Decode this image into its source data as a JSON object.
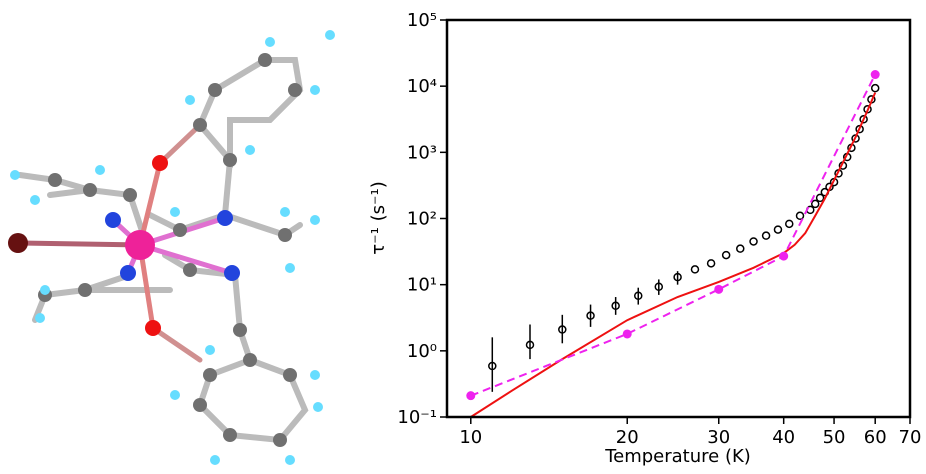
{
  "chart_data": {
    "type": "scatter-line",
    "xlabel": "Temperature (K)",
    "ylabel": "τ⁻¹ (s⁻¹)",
    "xscale": "log",
    "yscale": "log",
    "xlim": [
      9,
      70
    ],
    "ylim": [
      0.1,
      100000
    ],
    "xticks": [
      10,
      20,
      30,
      40,
      50,
      60,
      70
    ],
    "yticks": [
      {
        "value": 0.1,
        "label": "10⁻¹"
      },
      {
        "value": 1,
        "label": "10⁰"
      },
      {
        "value": 10,
        "label": "10¹"
      },
      {
        "value": 100,
        "label": "10²"
      },
      {
        "value": 1000,
        "label": "10³"
      },
      {
        "value": 10000,
        "label": "10⁴"
      },
      {
        "value": 100000,
        "label": "10⁵"
      }
    ],
    "series": [
      {
        "style": "open-circle-errorbar",
        "color": "#000000",
        "x": [
          11,
          13,
          15,
          17,
          19,
          21,
          23,
          25,
          27,
          29,
          31,
          33,
          35,
          37,
          39,
          41,
          43,
          45,
          46,
          47,
          48,
          49,
          50,
          51,
          52,
          53,
          54,
          55,
          56,
          57,
          58,
          59,
          60
        ],
        "values": [
          0.59,
          1.23,
          2.1,
          3.4,
          4.8,
          6.8,
          9.3,
          13,
          17,
          21,
          28,
          35,
          45,
          55,
          68,
          83,
          110,
          135,
          166,
          205,
          250,
          300,
          355,
          480,
          630,
          850,
          1170,
          1620,
          2240,
          3160,
          4470,
          6310,
          9330
        ],
        "lower": [
          0.24,
          0.75,
          1.3,
          2.3,
          3.5,
          5.0,
          7,
          10,
          null,
          null,
          null,
          null,
          null,
          null,
          null,
          null,
          null,
          null,
          null,
          null,
          null,
          null,
          null,
          null,
          null,
          null,
          null,
          null,
          null,
          null,
          null,
          null,
          null
        ],
        "upper": [
          1.6,
          2.5,
          3.5,
          5.0,
          6.5,
          9.0,
          12,
          16,
          null,
          null,
          null,
          null,
          null,
          null,
          null,
          null,
          null,
          null,
          null,
          null,
          null,
          null,
          null,
          null,
          null,
          null,
          null,
          null,
          null,
          null,
          null,
          null,
          null
        ]
      },
      {
        "style": "solid-line",
        "color": "#ee1111",
        "x": [
          10,
          12,
          15,
          20,
          25,
          30,
          35,
          40,
          42,
          44,
          46,
          48,
          50,
          52,
          55,
          58,
          60
        ],
        "values": [
          0.1,
          0.25,
          0.75,
          2.9,
          6.5,
          11,
          18,
          30,
          40,
          60,
          110,
          200,
          380,
          700,
          1700,
          4300,
          8000
        ]
      },
      {
        "style": "dashed-dot",
        "color": "#ee22ee",
        "x": [
          10,
          20,
          30,
          40,
          60
        ],
        "values": [
          0.21,
          1.8,
          8.5,
          27,
          15000
        ]
      }
    ]
  }
}
